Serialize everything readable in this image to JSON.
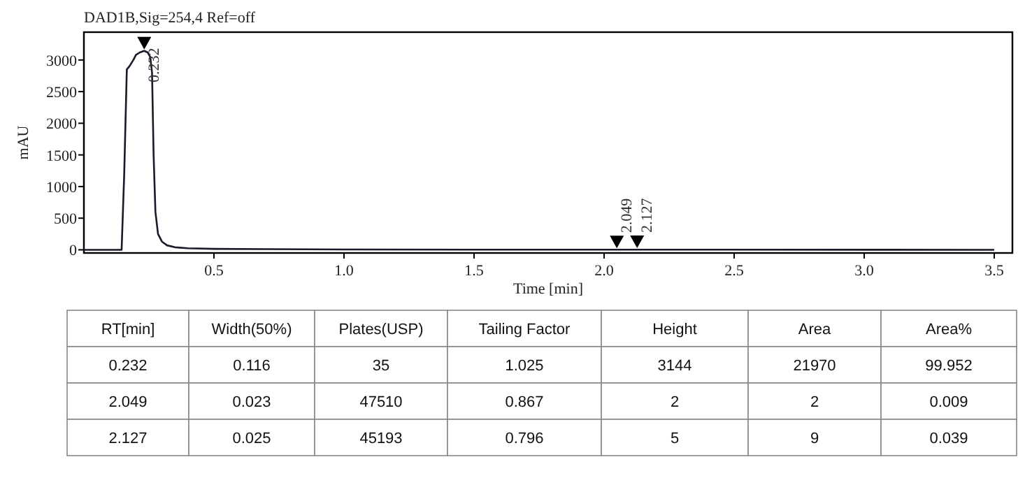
{
  "chart_data": [
    {
      "type": "line",
      "title": "DAD1B,Sig=254,4 Ref=off",
      "xlabel": "Time [min]",
      "ylabel": "mAU",
      "xlim": [
        0,
        3.57
      ],
      "ylim": [
        -50,
        3440
      ],
      "xticks": [
        0.5,
        {
          "value": 1,
          "label": "1.0"
        },
        1.5,
        {
          "value": 2,
          "label": "2.0"
        },
        2.5,
        {
          "value": 3,
          "label": "3.0"
        },
        3.5
      ],
      "yticks": [
        0,
        500,
        1000,
        1500,
        2000,
        2500,
        3000
      ],
      "grid": false,
      "marker": "none",
      "line_style": "solid",
      "series": [
        {
          "color": "#1a1a2a",
          "x": [
            0,
            0.1,
            0.145,
            0.155,
            0.165,
            0.175,
            0.19,
            0.2,
            0.215,
            0.232,
            0.245,
            0.255,
            0.262,
            0.268,
            0.275,
            0.285,
            0.3,
            0.32,
            0.35,
            0.4,
            0.5,
            0.7,
            1.0,
            1.5,
            2.0,
            2.5,
            3.0,
            3.5
          ],
          "values": [
            0,
            0,
            0,
            1200,
            2850,
            2900,
            3000,
            3080,
            3120,
            3144,
            3120,
            3050,
            2800,
            1500,
            600,
            250,
            130,
            70,
            40,
            25,
            15,
            10,
            5,
            3,
            2,
            2,
            1,
            0
          ]
        }
      ],
      "annotations": [
        {
          "text": "0.232",
          "x": 0.232,
          "y": 3144
        },
        {
          "text": "2.049",
          "x": 2.049,
          "y": 2
        },
        {
          "text": "2.127",
          "x": 2.127,
          "y": 5
        }
      ]
    },
    {
      "type": "other",
      "categories": [
        "RT[min]",
        "Width(50%)",
        "Plates(USP)",
        "Tailing Factor",
        "Height",
        "Area",
        "Area%"
      ],
      "cell_labels": [
        [
          "0.232",
          "0.116",
          "35",
          "1.025",
          "3144",
          "21970",
          "99.952"
        ],
        [
          "2.049",
          "0.023",
          "47510",
          "0.867",
          "2",
          "2",
          "0.009"
        ],
        [
          "2.127",
          "0.025",
          "45193",
          "0.796",
          "5",
          "9",
          "0.039"
        ]
      ]
    }
  ]
}
